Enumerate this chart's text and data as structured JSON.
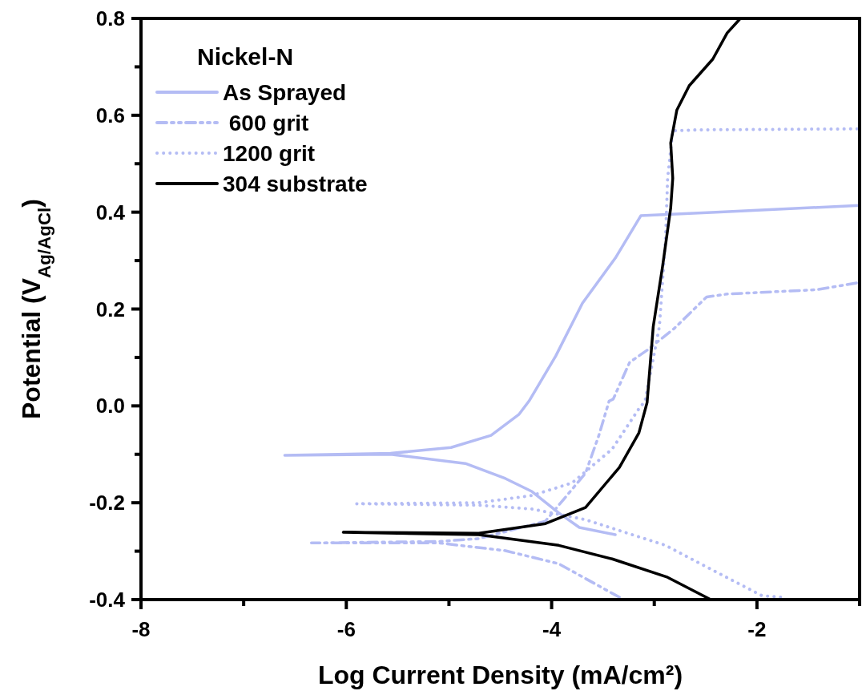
{
  "chart_data": {
    "type": "line",
    "xlabel": "Log Current Density (mA/cm²)",
    "ylabel": "Potential (V$_{Ag/AgCl}$)",
    "legend_title": "Nickel-N",
    "legend": "top left",
    "grid": false,
    "xlim": [
      -8,
      -1
    ],
    "ylim": [
      -0.4,
      0.8
    ],
    "xticks": [
      -8,
      {
        "value": -7,
        "label": null
      },
      -6,
      {
        "value": -5,
        "label": null
      },
      -4,
      {
        "value": -3,
        "label": null
      },
      -2,
      {
        "value": -1,
        "label": null
      }
    ],
    "yticks": [
      {
        "value": -0.4,
        "label": "-0.4"
      },
      {
        "value": -0.3,
        "label": null
      },
      {
        "value": -0.2,
        "label": "-0.2"
      },
      {
        "value": -0.1,
        "label": null
      },
      {
        "value": 0,
        "label": "0.0"
      },
      {
        "value": 0.1,
        "label": null
      },
      {
        "value": 0.2,
        "label": "0.2"
      },
      {
        "value": 0.3,
        "label": null
      },
      {
        "value": 0.4,
        "label": "0.4"
      },
      {
        "value": 0.5,
        "label": null
      },
      {
        "value": 0.6,
        "label": "0.6"
      },
      {
        "value": 0.7,
        "label": null
      },
      {
        "value": 0.8,
        "label": "0.8"
      }
    ],
    "series": [
      {
        "name": "As Sprayed",
        "color": "#b4bcf4",
        "line_style": "solid",
        "x": [
          -3.38,
          -3.73,
          -3.93,
          -4.19,
          -4.45,
          -4.84,
          -5.57,
          -6.6,
          -5.57,
          -4.98,
          -4.59,
          -4.32,
          -4.22,
          -3.96,
          -3.7,
          -3.38,
          -3.13,
          -2.4,
          -1.0
        ],
        "values": [
          -0.266,
          -0.251,
          -0.221,
          -0.177,
          -0.15,
          -0.119,
          -0.1,
          -0.102,
          -0.098,
          -0.086,
          -0.061,
          -0.018,
          0.01,
          0.103,
          0.212,
          0.305,
          0.393,
          0.4,
          0.414
        ]
      },
      {
        "name": " 600 grit",
        "color": "#b4bcf4",
        "line_style": "dashed",
        "x": [
          -3.34,
          -3.41,
          -3.93,
          -4.45,
          -5.1,
          -6.34,
          -5.1,
          -4.71,
          -4.06,
          -3.67,
          -3.54,
          -3.44,
          -3.4,
          -3.24,
          -3.07,
          -2.8,
          -2.49,
          -2.29,
          -1.41,
          -1.0
        ],
        "values": [
          -0.395,
          -0.387,
          -0.326,
          -0.299,
          -0.283,
          -0.283,
          -0.28,
          -0.274,
          -0.238,
          -0.139,
          -0.061,
          0.01,
          0.014,
          0.09,
          0.115,
          0.161,
          0.225,
          0.231,
          0.24,
          0.255
        ]
      },
      {
        "name": "1200 grit",
        "color": "#b4bcf4",
        "line_style": "dotted",
        "x": [
          -1.77,
          -1.95,
          -2.45,
          -2.89,
          -3.67,
          -4.19,
          -4.71,
          -5.9,
          -4.71,
          -4.19,
          -3.8,
          -3.41,
          -3.15,
          -3.09,
          -2.95,
          -2.89,
          -2.87,
          -2.82,
          -2.58,
          -1.0
        ],
        "values": [
          -0.395,
          -0.392,
          -0.337,
          -0.288,
          -0.235,
          -0.213,
          -0.205,
          -0.202,
          -0.2,
          -0.185,
          -0.159,
          -0.089,
          -0.006,
          0.01,
          0.164,
          0.348,
          0.47,
          0.568,
          0.57,
          0.572
        ]
      },
      {
        "name": "304 substrate",
        "color": "#000000",
        "line_style": "solid",
        "x": [
          -2.45,
          -2.87,
          -3.41,
          -3.93,
          -4.71,
          -6.03,
          -4.71,
          -4.06,
          -3.67,
          -3.34,
          -3.15,
          -3.07,
          -3.01,
          -2.92,
          -2.84,
          -2.82,
          -2.84,
          -2.78,
          -2.66,
          -2.43,
          -2.29,
          -2.17
        ],
        "values": [
          -0.4,
          -0.354,
          -0.316,
          -0.288,
          -0.266,
          -0.261,
          -0.263,
          -0.243,
          -0.21,
          -0.127,
          -0.056,
          0.007,
          0.164,
          0.287,
          0.409,
          0.47,
          0.543,
          0.611,
          0.661,
          0.716,
          0.77,
          0.798
        ]
      }
    ]
  }
}
